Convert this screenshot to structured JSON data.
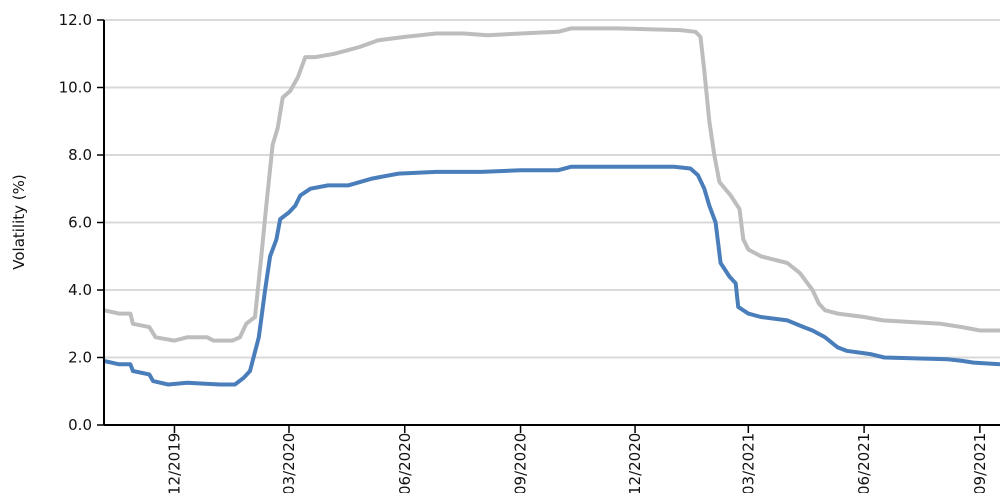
{
  "chart_data": {
    "type": "line",
    "title": "",
    "xlabel": "",
    "ylabel": "Volatility (%)",
    "ylim": [
      0,
      12
    ],
    "yticks": [
      "0.0",
      "2.0",
      "4.0",
      "6.0",
      "8.0",
      "10.0",
      "12.0"
    ],
    "xtick_labels": [
      "12/2019",
      "03/2020",
      "06/2020",
      "09/2020",
      "12/2020",
      "03/2021",
      "06/2021",
      "09/2021"
    ],
    "grid": "horizontal",
    "colors": {
      "gray_series": "#bdbdbd",
      "blue_series": "#4a7ebb",
      "grid": "#d9d9d9",
      "axis": "#000000"
    },
    "series": [
      {
        "color": "#bdbdbd",
        "points": [
          [
            "2019-10-20",
            3.4
          ],
          [
            "2019-11-01",
            3.3
          ],
          [
            "2019-11-10",
            3.3
          ],
          [
            "2019-11-12",
            3.0
          ],
          [
            "2019-11-25",
            2.9
          ],
          [
            "2019-11-30",
            2.6
          ],
          [
            "2019-12-15",
            2.5
          ],
          [
            "2019-12-25",
            2.6
          ],
          [
            "2020-01-10",
            2.6
          ],
          [
            "2020-01-15",
            2.5
          ],
          [
            "2020-01-30",
            2.5
          ],
          [
            "2020-02-05",
            2.6
          ],
          [
            "2020-02-10",
            3.0
          ],
          [
            "2020-02-17",
            3.2
          ],
          [
            "2020-02-22",
            5.0
          ],
          [
            "2020-02-26",
            6.5
          ],
          [
            "2020-03-02",
            8.3
          ],
          [
            "2020-03-06",
            8.8
          ],
          [
            "2020-03-10",
            9.7
          ],
          [
            "2020-03-16",
            9.9
          ],
          [
            "2020-03-22",
            10.3
          ],
          [
            "2020-03-28",
            10.9
          ],
          [
            "2020-04-05",
            10.9
          ],
          [
            "2020-04-20",
            11.0
          ],
          [
            "2020-05-10",
            11.2
          ],
          [
            "2020-05-25",
            11.4
          ],
          [
            "2020-06-15",
            11.5
          ],
          [
            "2020-07-10",
            11.6
          ],
          [
            "2020-08-01",
            11.6
          ],
          [
            "2020-08-20",
            11.55
          ],
          [
            "2020-09-15",
            11.6
          ],
          [
            "2020-10-15",
            11.65
          ],
          [
            "2020-10-25",
            11.75
          ],
          [
            "2020-12-01",
            11.75
          ],
          [
            "2021-01-20",
            11.7
          ],
          [
            "2021-02-01",
            11.65
          ],
          [
            "2021-02-05",
            11.5
          ],
          [
            "2021-02-08",
            10.5
          ],
          [
            "2021-02-12",
            9.0
          ],
          [
            "2021-02-16",
            8.0
          ],
          [
            "2021-02-20",
            7.2
          ],
          [
            "2021-03-01",
            6.8
          ],
          [
            "2021-03-08",
            6.4
          ],
          [
            "2021-03-11",
            5.5
          ],
          [
            "2021-03-15",
            5.2
          ],
          [
            "2021-03-25",
            5.0
          ],
          [
            "2021-04-15",
            4.8
          ],
          [
            "2021-04-25",
            4.5
          ],
          [
            "2021-05-05",
            4.0
          ],
          [
            "2021-05-10",
            3.6
          ],
          [
            "2021-05-15",
            3.4
          ],
          [
            "2021-05-25",
            3.3
          ],
          [
            "2021-06-15",
            3.2
          ],
          [
            "2021-06-30",
            3.1
          ],
          [
            "2021-08-15",
            3.0
          ],
          [
            "2021-09-01",
            2.9
          ],
          [
            "2021-09-15",
            2.8
          ],
          [
            "2021-10-01",
            2.8
          ]
        ]
      },
      {
        "color": "#4a7ebb",
        "points": [
          [
            "2019-10-20",
            1.9
          ],
          [
            "2019-11-01",
            1.8
          ],
          [
            "2019-11-10",
            1.8
          ],
          [
            "2019-11-12",
            1.6
          ],
          [
            "2019-11-25",
            1.5
          ],
          [
            "2019-11-28",
            1.3
          ],
          [
            "2019-12-10",
            1.2
          ],
          [
            "2019-12-25",
            1.25
          ],
          [
            "2020-01-20",
            1.2
          ],
          [
            "2020-02-01",
            1.2
          ],
          [
            "2020-02-08",
            1.4
          ],
          [
            "2020-02-13",
            1.6
          ],
          [
            "2020-02-20",
            2.6
          ],
          [
            "2020-02-25",
            4.0
          ],
          [
            "2020-02-29",
            5.0
          ],
          [
            "2020-03-05",
            5.5
          ],
          [
            "2020-03-08",
            6.1
          ],
          [
            "2020-03-15",
            6.3
          ],
          [
            "2020-03-20",
            6.5
          ],
          [
            "2020-03-24",
            6.8
          ],
          [
            "2020-04-01",
            7.0
          ],
          [
            "2020-04-15",
            7.1
          ],
          [
            "2020-05-01",
            7.1
          ],
          [
            "2020-05-20",
            7.3
          ],
          [
            "2020-06-10",
            7.45
          ],
          [
            "2020-07-10",
            7.5
          ],
          [
            "2020-08-15",
            7.5
          ],
          [
            "2020-09-15",
            7.55
          ],
          [
            "2020-10-15",
            7.55
          ],
          [
            "2020-10-25",
            7.65
          ],
          [
            "2021-01-15",
            7.65
          ],
          [
            "2021-01-28",
            7.6
          ],
          [
            "2021-02-03",
            7.4
          ],
          [
            "2021-02-08",
            7.0
          ],
          [
            "2021-02-12",
            6.5
          ],
          [
            "2021-02-17",
            6.0
          ],
          [
            "2021-02-21",
            4.8
          ],
          [
            "2021-02-28",
            4.4
          ],
          [
            "2021-03-05",
            4.2
          ],
          [
            "2021-03-07",
            3.5
          ],
          [
            "2021-03-15",
            3.3
          ],
          [
            "2021-03-25",
            3.2
          ],
          [
            "2021-04-15",
            3.1
          ],
          [
            "2021-04-28",
            2.9
          ],
          [
            "2021-05-05",
            2.8
          ],
          [
            "2021-05-15",
            2.6
          ],
          [
            "2021-05-25",
            2.3
          ],
          [
            "2021-06-01",
            2.2
          ],
          [
            "2021-06-20",
            2.1
          ],
          [
            "2021-07-01",
            2.0
          ],
          [
            "2021-08-20",
            1.95
          ],
          [
            "2021-09-01",
            1.9
          ],
          [
            "2021-09-10",
            1.85
          ],
          [
            "2021-10-01",
            1.8
          ]
        ]
      }
    ]
  }
}
